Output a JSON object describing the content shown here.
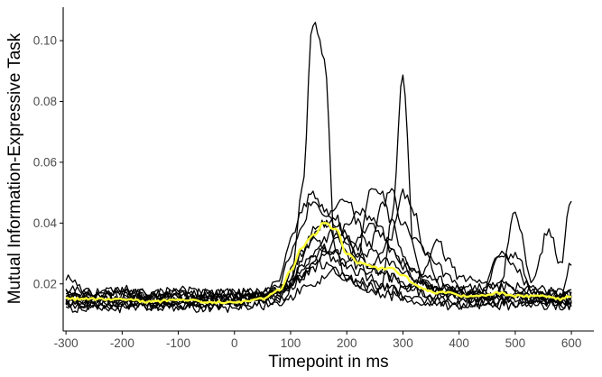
{
  "chart_data": {
    "type": "line",
    "xlabel": "Timepoint in ms",
    "ylabel": "Mutual Information-Expressive Task",
    "xlim": [
      -305,
      640
    ],
    "ylim": [
      0.0045,
      0.111
    ],
    "x_ticks": [
      -300,
      -200,
      -100,
      0,
      100,
      200,
      300,
      400,
      500,
      600
    ],
    "x_tick_labels": [
      "-300",
      "-200",
      "-100",
      "0",
      "100",
      "200",
      "300",
      "400",
      "500",
      "600"
    ],
    "y_ticks": [
      0.02,
      0.04,
      0.06,
      0.08,
      0.1
    ],
    "y_tick_labels": [
      "0.02",
      "0.04",
      "0.06",
      "0.08",
      "0.10"
    ],
    "grid": false,
    "legend": "none",
    "colors": {
      "individual": "#000000",
      "mean": "#ffff33",
      "axis": "#000000",
      "tick_text": "#4d4d4d"
    },
    "sample_x": [
      -300,
      -250,
      -200,
      -150,
      -100,
      -50,
      0,
      50,
      80,
      100,
      120,
      140,
      160,
      180,
      200,
      220,
      240,
      260,
      280,
      300,
      320,
      340,
      360,
      380,
      400,
      440,
      470,
      500,
      530,
      560,
      580,
      600
    ],
    "series": [
      {
        "values": [
          0.022,
          0.016,
          0.018,
          0.016,
          0.017,
          0.016,
          0.016,
          0.017,
          0.018,
          0.02,
          0.05,
          0.106,
          0.095,
          0.03,
          0.022,
          0.02,
          0.019,
          0.018,
          0.04,
          0.089,
          0.03,
          0.02,
          0.018,
          0.018,
          0.017,
          0.016,
          0.017,
          0.043,
          0.02,
          0.038,
          0.026,
          0.048
        ]
      },
      {
        "values": [
          0.015,
          0.014,
          0.015,
          0.014,
          0.015,
          0.014,
          0.014,
          0.016,
          0.022,
          0.035,
          0.045,
          0.05,
          0.044,
          0.04,
          0.036,
          0.032,
          0.03,
          0.045,
          0.05,
          0.04,
          0.035,
          0.03,
          0.026,
          0.022,
          0.02,
          0.019,
          0.02,
          0.018,
          0.017,
          0.017,
          0.016,
          0.027
        ]
      },
      {
        "values": [
          0.014,
          0.015,
          0.014,
          0.015,
          0.014,
          0.015,
          0.015,
          0.015,
          0.02,
          0.03,
          0.04,
          0.048,
          0.042,
          0.045,
          0.048,
          0.04,
          0.033,
          0.028,
          0.026,
          0.024,
          0.022,
          0.02,
          0.018,
          0.017,
          0.016,
          0.016,
          0.015,
          0.015,
          0.015,
          0.015,
          0.014,
          0.015
        ]
      },
      {
        "values": [
          0.016,
          0.015,
          0.016,
          0.015,
          0.016,
          0.015,
          0.016,
          0.016,
          0.018,
          0.024,
          0.03,
          0.035,
          0.032,
          0.03,
          0.034,
          0.028,
          0.05,
          0.05,
          0.04,
          0.03,
          0.024,
          0.02,
          0.018,
          0.017,
          0.016,
          0.016,
          0.016,
          0.016,
          0.015,
          0.016,
          0.016,
          0.016
        ]
      },
      {
        "values": [
          0.013,
          0.013,
          0.014,
          0.013,
          0.014,
          0.013,
          0.014,
          0.015,
          0.017,
          0.02,
          0.028,
          0.036,
          0.04,
          0.042,
          0.035,
          0.03,
          0.026,
          0.024,
          0.022,
          0.02,
          0.018,
          0.017,
          0.016,
          0.015,
          0.015,
          0.014,
          0.014,
          0.014,
          0.014,
          0.014,
          0.014,
          0.014
        ]
      },
      {
        "values": [
          0.018,
          0.017,
          0.018,
          0.017,
          0.018,
          0.017,
          0.017,
          0.017,
          0.018,
          0.02,
          0.022,
          0.025,
          0.03,
          0.035,
          0.04,
          0.044,
          0.042,
          0.038,
          0.03,
          0.026,
          0.022,
          0.02,
          0.018,
          0.018,
          0.017,
          0.017,
          0.03,
          0.025,
          0.018,
          0.018,
          0.017,
          0.017
        ]
      },
      {
        "values": [
          0.012,
          0.012,
          0.012,
          0.013,
          0.012,
          0.012,
          0.012,
          0.013,
          0.015,
          0.018,
          0.022,
          0.028,
          0.032,
          0.03,
          0.026,
          0.024,
          0.022,
          0.02,
          0.018,
          0.016,
          0.015,
          0.014,
          0.014,
          0.013,
          0.013,
          0.013,
          0.013,
          0.013,
          0.013,
          0.013,
          0.013,
          0.013
        ]
      },
      {
        "values": [
          0.016,
          0.016,
          0.017,
          0.016,
          0.017,
          0.016,
          0.016,
          0.016,
          0.017,
          0.019,
          0.022,
          0.026,
          0.03,
          0.028,
          0.026,
          0.034,
          0.04,
          0.036,
          0.03,
          0.027,
          0.025,
          0.022,
          0.02,
          0.018,
          0.017,
          0.016,
          0.016,
          0.016,
          0.016,
          0.016,
          0.016,
          0.016
        ]
      },
      {
        "values": [
          0.014,
          0.014,
          0.013,
          0.014,
          0.013,
          0.014,
          0.014,
          0.015,
          0.016,
          0.02,
          0.026,
          0.03,
          0.034,
          0.038,
          0.03,
          0.026,
          0.024,
          0.03,
          0.036,
          0.05,
          0.044,
          0.03,
          0.022,
          0.02,
          0.018,
          0.017,
          0.016,
          0.016,
          0.015,
          0.015,
          0.015,
          0.015
        ]
      },
      {
        "values": [
          0.017,
          0.017,
          0.016,
          0.017,
          0.016,
          0.017,
          0.017,
          0.017,
          0.018,
          0.02,
          0.024,
          0.028,
          0.026,
          0.024,
          0.022,
          0.021,
          0.02,
          0.019,
          0.018,
          0.018,
          0.02,
          0.024,
          0.036,
          0.028,
          0.022,
          0.02,
          0.019,
          0.019,
          0.018,
          0.018,
          0.017,
          0.017
        ]
      },
      {
        "values": [
          0.013,
          0.013,
          0.013,
          0.012,
          0.013,
          0.013,
          0.013,
          0.013,
          0.014,
          0.016,
          0.018,
          0.02,
          0.022,
          0.024,
          0.022,
          0.02,
          0.018,
          0.017,
          0.016,
          0.015,
          0.014,
          0.014,
          0.014,
          0.013,
          0.013,
          0.014,
          0.028,
          0.03,
          0.02,
          0.014,
          0.013,
          0.013
        ]
      },
      {
        "values": [
          0.015,
          0.015,
          0.015,
          0.015,
          0.014,
          0.015,
          0.015,
          0.016,
          0.018,
          0.022,
          0.03,
          0.038,
          0.04,
          0.036,
          0.032,
          0.028,
          0.026,
          0.024,
          0.022,
          0.02,
          0.018,
          0.017,
          0.016,
          0.016,
          0.015,
          0.015,
          0.015,
          0.015,
          0.015,
          0.015,
          0.015,
          0.015
        ]
      }
    ],
    "mean_series": {
      "values": [
        0.015,
        0.015,
        0.015,
        0.014,
        0.015,
        0.014,
        0.014,
        0.015,
        0.018,
        0.024,
        0.032,
        0.036,
        0.04,
        0.038,
        0.03,
        0.027,
        0.026,
        0.025,
        0.025,
        0.023,
        0.02,
        0.018,
        0.017,
        0.017,
        0.016,
        0.016,
        0.017,
        0.016,
        0.016,
        0.016,
        0.015,
        0.016
      ]
    }
  }
}
